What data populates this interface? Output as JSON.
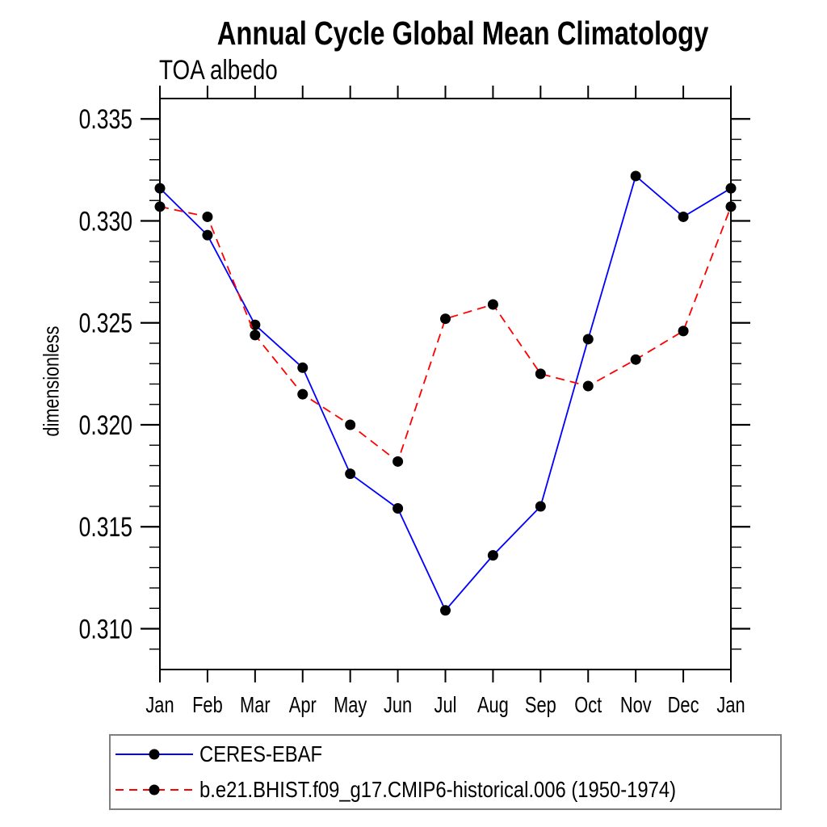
{
  "chart_data": {
    "type": "line",
    "title": "Annual Cycle Global Mean Climatology",
    "subtitle": "TOA albedo",
    "xlabel": "",
    "ylabel": "dimensionless",
    "x_tick_labels": [
      "Jan",
      "Feb",
      "Mar",
      "Apr",
      "May",
      "Jun",
      "Jul",
      "Aug",
      "Sep",
      "Oct",
      "Nov",
      "Dec",
      "Jan"
    ],
    "y_tick_labels": [
      "0.310",
      "0.315",
      "0.320",
      "0.325",
      "0.330",
      "0.335"
    ],
    "y_major_ticks": [
      0.31,
      0.315,
      0.32,
      0.325,
      0.33,
      0.335
    ],
    "y_minor_step": 0.001,
    "ylim": [
      0.308,
      0.336
    ],
    "grid": false,
    "legend_position": "bottom-left-box",
    "marker_color": "#000000",
    "series": [
      {
        "name": "CERES-EBAF",
        "color": "#0000ff",
        "style": "solid",
        "marker": "filled-circle",
        "values": [
          0.3316,
          0.3293,
          0.3249,
          0.3228,
          0.3176,
          0.3159,
          0.3109,
          0.3136,
          0.316,
          0.3242,
          0.3322,
          0.3302,
          0.3316
        ]
      },
      {
        "name": "b.e21.BHIST.f09_g17.CMIP6-historical.006 (1950-1974)",
        "color": "#ff0000",
        "style": "dashed",
        "marker": "filled-circle",
        "values": [
          0.3307,
          0.3302,
          0.3244,
          0.3215,
          0.32,
          0.3182,
          0.3252,
          0.3259,
          0.3225,
          0.3219,
          0.3232,
          0.3246,
          0.3307
        ]
      }
    ]
  }
}
